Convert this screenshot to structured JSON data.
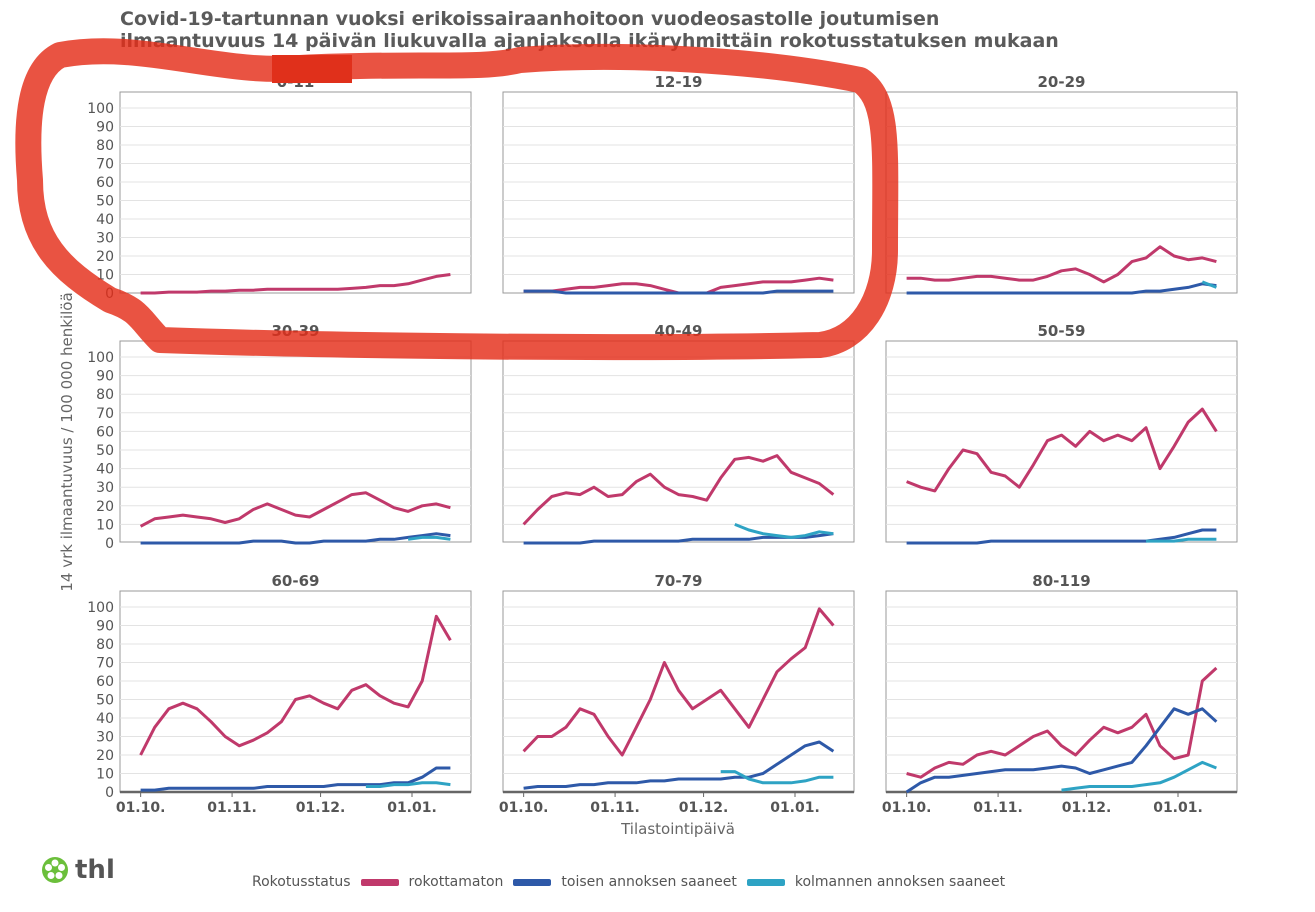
{
  "chart_data": {
    "type": "line",
    "title": "Covid-19-tartunnan vuoksi erikoissairaanhoitoon vuodeosastolle joutumisen ilmaantuvuus 14 päivän liukuvalla ajanjaksolla ikäryhmittäin rokotusstatuksen mukaan",
    "title_lines": [
      "Covid-19-tartunnan vuoksi erikoissairaanhoitoon vuodeosastolle joutumisen",
      "ilmaantuvuus 14 päivän liukuvalla ajanjaksolla ikäryhmittäin rokotusstatuksen mukaan"
    ],
    "xlabel": "Tilastointipäivä",
    "ylabel": "14 vrk ilmaantuvuus / 100 000 henkilöä",
    "ylim": [
      0,
      100
    ],
    "yticks": [
      0,
      10,
      20,
      30,
      40,
      50,
      60,
      70,
      80,
      90,
      100
    ],
    "xticks": [
      {
        "label": "01.10.",
        "day": 0
      },
      {
        "label": "01.11.",
        "day": 31
      },
      {
        "label": "01.12.",
        "day": 61
      },
      {
        "label": "01.01.",
        "day": 92
      }
    ],
    "xlim_days": [
      -7,
      112
    ],
    "data_day_range": [
      0,
      105
    ],
    "legend": {
      "title": "Rokotusstatus",
      "position": "bottom"
    },
    "series_meta": [
      {
        "key": "rok",
        "name": "rokottamaton",
        "color": "#c0396b"
      },
      {
        "key": "toi",
        "name": "toisen annoksen saaneet",
        "color": "#2e59a8"
      },
      {
        "key": "kol",
        "name": "kolmannen annoksen saaneet",
        "color": "#2ea3c4"
      }
    ],
    "panels": [
      {
        "label": "0-11",
        "rok": [
          0,
          0,
          0.5,
          0.5,
          0.5,
          1,
          1,
          1.5,
          1.5,
          2,
          2,
          2,
          2,
          2,
          2,
          2.5,
          3,
          4,
          4,
          5,
          7,
          9,
          10
        ],
        "toi": [],
        "kol": []
      },
      {
        "label": "12-19",
        "rok": [
          1,
          1,
          1,
          2,
          3,
          3,
          4,
          5,
          5,
          4,
          2,
          0,
          0,
          0,
          3,
          4,
          5,
          6,
          6,
          6,
          7,
          8,
          7
        ],
        "toi": [
          1,
          1,
          1,
          0,
          0,
          0,
          0,
          0,
          0,
          0,
          0,
          0,
          0,
          0,
          0,
          0,
          0,
          0,
          1,
          1,
          1,
          1,
          1
        ],
        "kol": []
      },
      {
        "label": "20-29",
        "rok": [
          8,
          8,
          7,
          7,
          8,
          9,
          9,
          8,
          7,
          7,
          9,
          12,
          13,
          10,
          6,
          10,
          17,
          19,
          25,
          20,
          18,
          19,
          17
        ],
        "toi": [
          0,
          0,
          0,
          0,
          0,
          0,
          0,
          0,
          0,
          0,
          0,
          0,
          0,
          0,
          0,
          0,
          0,
          1,
          1,
          2,
          3,
          5,
          4
        ],
        "kol": [
          null,
          null,
          null,
          null,
          null,
          null,
          null,
          null,
          null,
          null,
          null,
          null,
          null,
          null,
          null,
          null,
          null,
          null,
          null,
          null,
          null,
          6,
          3
        ]
      },
      {
        "label": "30-39",
        "rok": [
          9,
          13,
          14,
          15,
          14,
          13,
          11,
          13,
          18,
          21,
          18,
          15,
          14,
          18,
          22,
          26,
          27,
          23,
          19,
          17,
          20,
          21,
          19
        ],
        "toi": [
          0,
          0,
          0,
          0,
          0,
          0,
          0,
          0,
          1,
          1,
          1,
          0,
          0,
          1,
          1,
          1,
          1,
          2,
          2,
          3,
          4,
          5,
          4
        ],
        "kol": [
          null,
          null,
          null,
          null,
          null,
          null,
          null,
          null,
          null,
          null,
          null,
          null,
          null,
          null,
          null,
          null,
          null,
          null,
          null,
          2,
          3,
          3,
          2
        ]
      },
      {
        "label": "40-49",
        "rok": [
          10,
          18,
          25,
          27,
          26,
          30,
          25,
          26,
          33,
          37,
          30,
          26,
          25,
          23,
          35,
          45,
          46,
          44,
          47,
          38,
          35,
          32,
          26
        ],
        "toi": [
          0,
          0,
          0,
          0,
          0,
          1,
          1,
          1,
          1,
          1,
          1,
          1,
          2,
          2,
          2,
          2,
          2,
          3,
          3,
          3,
          3,
          4,
          5
        ],
        "kol": [
          null,
          null,
          null,
          null,
          null,
          null,
          null,
          null,
          null,
          null,
          null,
          null,
          null,
          null,
          null,
          10,
          7,
          5,
          4,
          3,
          4,
          6,
          5
        ]
      },
      {
        "label": "50-59",
        "rok": [
          33,
          30,
          28,
          40,
          50,
          48,
          38,
          36,
          30,
          42,
          55,
          58,
          52,
          60,
          55,
          58,
          55,
          62,
          40,
          52,
          65,
          72,
          60
        ],
        "toi": [
          0,
          0,
          0,
          0,
          0,
          0,
          1,
          1,
          1,
          1,
          1,
          1,
          1,
          1,
          1,
          1,
          1,
          1,
          2,
          3,
          5,
          7,
          7
        ],
        "kol": [
          null,
          null,
          null,
          null,
          null,
          null,
          null,
          null,
          null,
          null,
          null,
          null,
          null,
          null,
          null,
          null,
          null,
          1,
          1,
          1,
          2,
          2,
          2
        ]
      },
      {
        "label": "60-69",
        "rok": [
          20,
          35,
          45,
          48,
          45,
          38,
          30,
          25,
          28,
          32,
          38,
          50,
          52,
          48,
          45,
          55,
          58,
          52,
          48,
          46,
          60,
          95,
          82
        ],
        "toi": [
          1,
          1,
          2,
          2,
          2,
          2,
          2,
          2,
          2,
          3,
          3,
          3,
          3,
          3,
          4,
          4,
          4,
          4,
          5,
          5,
          8,
          13,
          13
        ],
        "kol": [
          null,
          null,
          null,
          null,
          null,
          null,
          null,
          null,
          null,
          null,
          null,
          null,
          null,
          null,
          null,
          null,
          3,
          3,
          4,
          4,
          5,
          5,
          4
        ]
      },
      {
        "label": "70-79",
        "rok": [
          22,
          30,
          30,
          35,
          45,
          42,
          30,
          20,
          35,
          50,
          70,
          55,
          45,
          50,
          55,
          45,
          35,
          50,
          65,
          72,
          78,
          99,
          90
        ],
        "toi": [
          2,
          3,
          3,
          3,
          4,
          4,
          5,
          5,
          5,
          6,
          6,
          7,
          7,
          7,
          7,
          8,
          8,
          10,
          15,
          20,
          25,
          27,
          22
        ],
        "kol": [
          null,
          null,
          null,
          null,
          null,
          null,
          null,
          null,
          null,
          null,
          null,
          null,
          null,
          null,
          11,
          11,
          7,
          5,
          5,
          5,
          6,
          8,
          8
        ]
      },
      {
        "label": "80-119",
        "rok": [
          10,
          8,
          13,
          16,
          15,
          20,
          22,
          20,
          25,
          30,
          33,
          25,
          20,
          28,
          35,
          32,
          35,
          42,
          25,
          18,
          20,
          60,
          67
        ],
        "toi": [
          0,
          5,
          8,
          8,
          9,
          10,
          11,
          12,
          12,
          12,
          13,
          14,
          13,
          10,
          12,
          14,
          16,
          25,
          35,
          45,
          42,
          45,
          38
        ],
        "kol": [
          null,
          null,
          null,
          null,
          null,
          null,
          null,
          null,
          null,
          null,
          null,
          1,
          2,
          3,
          3,
          3,
          3,
          4,
          5,
          8,
          12,
          16,
          13
        ]
      }
    ]
  },
  "logo": {
    "text": "thl",
    "color": "#6bbf3b"
  }
}
